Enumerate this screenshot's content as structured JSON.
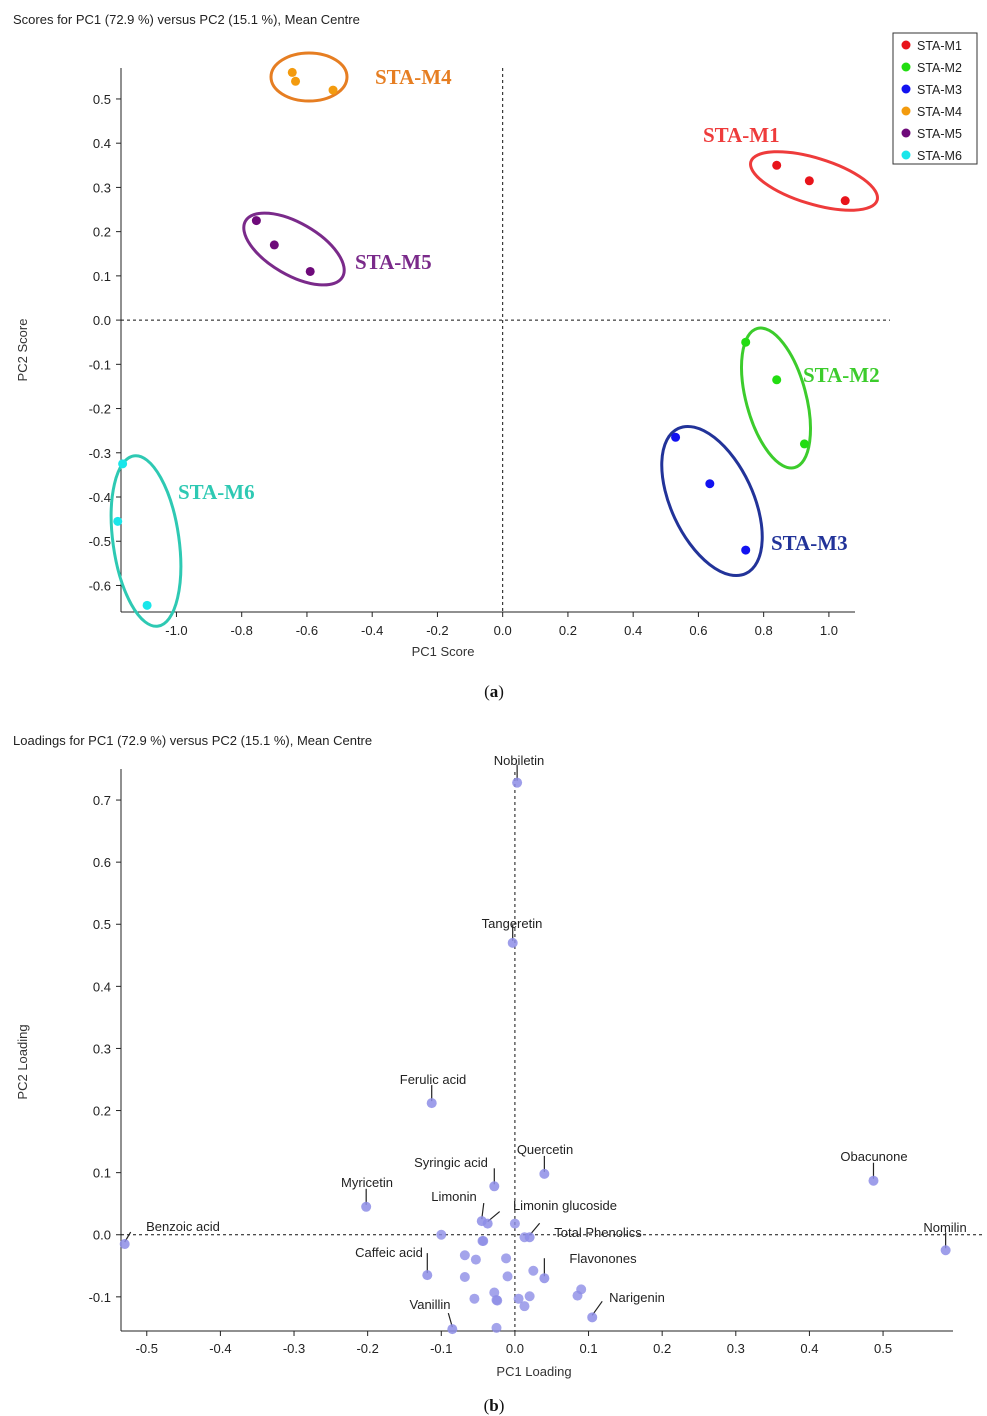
{
  "chart_data": [
    {
      "type": "scatter",
      "title": "Scores for PC1 (72.9 %) versus PC2 (15.1 %), Mean Centre",
      "xlabel": "PC1 Score",
      "ylabel": "PC2 Score",
      "panel_label": "a",
      "xlim": [
        -1.17,
        1.08
      ],
      "ylim": [
        -0.66,
        0.57
      ],
      "x_ticks": [
        -1.0,
        -0.8,
        -0.6,
        -0.4,
        -0.2,
        0.0,
        0.2,
        0.4,
        0.6,
        0.8,
        1.0
      ],
      "x_tick_labels": [
        "-1.0",
        "-0.8",
        "-0.6",
        "-0.4",
        "-0.2",
        "0.0",
        "0.2",
        "0.4",
        "0.6",
        "0.8",
        "1.0"
      ],
      "y_ticks": [
        0.5,
        0.4,
        0.3,
        0.2,
        0.1,
        0.0,
        -0.1,
        -0.2,
        -0.3,
        -0.4,
        -0.5,
        -0.6
      ],
      "y_tick_labels": [
        "0.5",
        "0.4",
        "0.3",
        "0.2",
        "0.1",
        "0.0",
        "-0.1",
        "-0.2",
        "-0.3",
        "-0.4",
        "-0.5",
        "-0.6"
      ],
      "reference_lines": {
        "x": 0,
        "y": 0,
        "style": "dashed"
      },
      "legend_position": "top-right",
      "series": [
        {
          "name": "STA-M1",
          "color": "#e8141b",
          "label_color": "#ee3b3b",
          "points": [
            [
              0.84,
              0.35
            ],
            [
              0.94,
              0.315
            ],
            [
              1.05,
              0.27
            ]
          ]
        },
        {
          "name": "STA-M2",
          "color": "#22dd11",
          "label_color": "#3ccc2c",
          "points": [
            [
              0.745,
              -0.05
            ],
            [
              0.84,
              -0.135
            ],
            [
              0.925,
              -0.28
            ]
          ]
        },
        {
          "name": "STA-M3",
          "color": "#1212f0",
          "label_color": "#223399",
          "points": [
            [
              0.53,
              -0.265
            ],
            [
              0.635,
              -0.37
            ],
            [
              0.745,
              -0.52
            ]
          ]
        },
        {
          "name": "STA-M4",
          "color": "#f39b0e",
          "label_color": "#e67e22",
          "points": [
            [
              -0.645,
              0.56
            ],
            [
              -0.635,
              0.54
            ],
            [
              -0.52,
              0.52
            ]
          ]
        },
        {
          "name": "STA-M5",
          "color": "#6e0a7a",
          "label_color": "#7a2a8a",
          "points": [
            [
              -0.755,
              0.225
            ],
            [
              -0.7,
              0.17
            ],
            [
              -0.59,
              0.11
            ]
          ]
        },
        {
          "name": "STA-M6",
          "color": "#19e6ea",
          "label_color": "#2ec9b3",
          "points": [
            [
              -1.165,
              -0.325
            ],
            [
              -1.18,
              -0.455
            ],
            [
              -1.09,
              -0.645
            ]
          ]
        }
      ]
    },
    {
      "type": "scatter",
      "title": "Loadings for PC1 (72.9 %) versus PC2 (15.1 %), Mean Centre",
      "xlabel": "PC1 Loading",
      "ylabel": "PC2 Loading",
      "panel_label": "b",
      "point_color": "#8d8de6",
      "xlim": [
        -0.535,
        0.595
      ],
      "ylim": [
        -0.155,
        0.75
      ],
      "x_ticks": [
        -0.5,
        -0.4,
        -0.3,
        -0.2,
        -0.1,
        0.0,
        0.1,
        0.2,
        0.3,
        0.4,
        0.5
      ],
      "x_tick_labels": [
        "-0.5",
        "-0.4",
        "-0.3",
        "-0.2",
        "-0.1",
        "0.0",
        "0.1",
        "0.2",
        "0.3",
        "0.4",
        "0.5"
      ],
      "y_ticks": [
        0.7,
        0.6,
        0.5,
        0.4,
        0.3,
        0.2,
        0.1,
        0.0,
        -0.1
      ],
      "y_tick_labels": [
        "0.7",
        "0.6",
        "0.5",
        "0.4",
        "0.3",
        "0.2",
        "0.1",
        "0.0",
        "-0.1"
      ],
      "reference_lines": {
        "x": 0,
        "y": 0,
        "style": "dashed"
      },
      "labeled_points": [
        {
          "name": "Nobiletin",
          "x": 0.003,
          "y": 0.728
        },
        {
          "name": "Tangeretin",
          "x": -0.003,
          "y": 0.47
        },
        {
          "name": "Ferulic acid",
          "x": -0.113,
          "y": 0.212
        },
        {
          "name": "Quercetin",
          "x": 0.04,
          "y": 0.098
        },
        {
          "name": "Syringic acid",
          "x": -0.028,
          "y": 0.078
        },
        {
          "name": "Myricetin",
          "x": -0.202,
          "y": 0.045
        },
        {
          "name": "Limonin",
          "x": -0.045,
          "y": 0.022
        },
        {
          "name": "Limonin glucoside",
          "x": -0.037,
          "y": 0.018
        },
        {
          "name": "Total Phenolics",
          "x": 0.02,
          "y": -0.004
        },
        {
          "name": "Benzoic acid",
          "x": -0.53,
          "y": -0.015
        },
        {
          "name": "Caffeic acid",
          "x": -0.119,
          "y": -0.065
        },
        {
          "name": "Flavonones",
          "x": 0.04,
          "y": -0.07
        },
        {
          "name": "Narigenin",
          "x": 0.105,
          "y": -0.133
        },
        {
          "name": "Vanillin",
          "x": -0.085,
          "y": -0.152
        },
        {
          "name": "Obacunone",
          "x": 0.487,
          "y": 0.087
        },
        {
          "name": "Nomilin",
          "x": 0.585,
          "y": -0.025
        }
      ],
      "unlabeled_points": [
        [
          -0.1,
          0.0
        ],
        [
          -0.043,
          -0.01
        ],
        [
          -0.044,
          -0.01
        ],
        [
          0.0,
          0.018
        ],
        [
          0.013,
          -0.004
        ],
        [
          -0.068,
          -0.033
        ],
        [
          -0.053,
          -0.04
        ],
        [
          -0.068,
          -0.068
        ],
        [
          -0.012,
          -0.038
        ],
        [
          -0.01,
          -0.067
        ],
        [
          0.025,
          -0.058
        ],
        [
          -0.055,
          -0.103
        ],
        [
          -0.028,
          -0.093
        ],
        [
          -0.025,
          -0.105
        ],
        [
          -0.024,
          -0.106
        ],
        [
          0.005,
          -0.103
        ],
        [
          0.013,
          -0.115
        ],
        [
          0.02,
          -0.099
        ],
        [
          0.085,
          -0.098
        ],
        [
          0.09,
          -0.088
        ],
        [
          -0.025,
          -0.15
        ]
      ]
    }
  ]
}
